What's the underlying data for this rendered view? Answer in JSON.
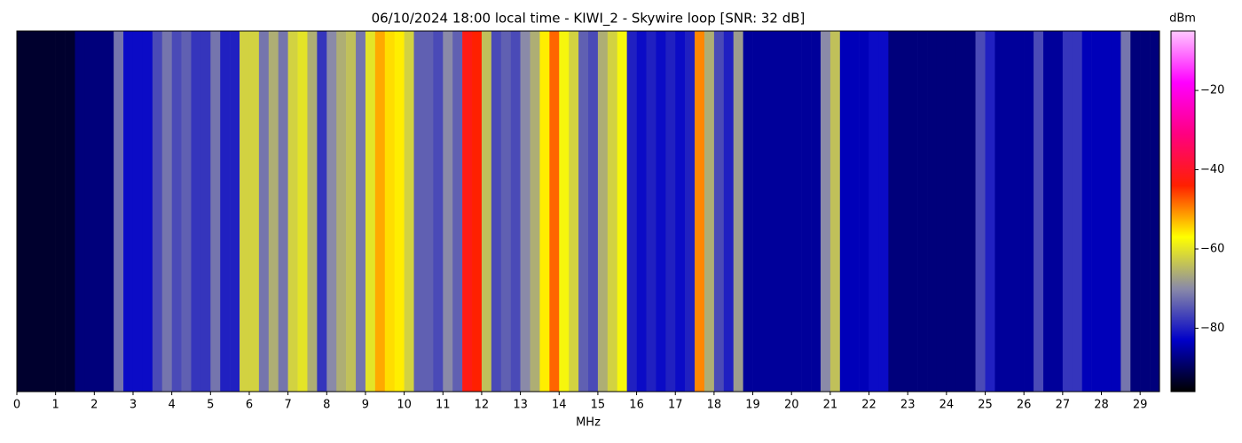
{
  "chart_data": {
    "type": "heatmap",
    "title": "06/10/2024 18:00 local time - KIWI_2 - Skywire loop [SNR: 32 dB]",
    "xlabel": "MHz",
    "colorbar_label": "dBm",
    "x": [
      0,
      0.25,
      0.5,
      0.75,
      1,
      1.25,
      1.5,
      1.75,
      2,
      2.25,
      2.5,
      2.75,
      3,
      3.25,
      3.5,
      3.75,
      4,
      4.25,
      4.5,
      4.75,
      5,
      5.25,
      5.5,
      5.75,
      6,
      6.25,
      6.5,
      6.75,
      7,
      7.25,
      7.5,
      7.75,
      8,
      8.25,
      8.5,
      8.75,
      9,
      9.25,
      9.5,
      9.75,
      10,
      10.25,
      10.5,
      10.75,
      11,
      11.25,
      11.5,
      11.75,
      12,
      12.25,
      12.5,
      12.75,
      13,
      13.25,
      13.5,
      13.75,
      14,
      14.25,
      14.5,
      14.75,
      15,
      15.25,
      15.5,
      15.75,
      16,
      16.25,
      16.5,
      16.75,
      17,
      17.25,
      17.5,
      17.75,
      18,
      18.25,
      18.5,
      18.75,
      19,
      19.25,
      19.5,
      19.75,
      20,
      20.25,
      20.5,
      20.75,
      21,
      21.25,
      21.5,
      21.75,
      22,
      22.25,
      22.5,
      22.75,
      23,
      23.25,
      23.5,
      23.75,
      24,
      24.25,
      24.5,
      24.75,
      25,
      25.25,
      25.5,
      25.75,
      26,
      26.25,
      26.5,
      26.75,
      27,
      27.25,
      27.5,
      27.75,
      28,
      28.25,
      28.5,
      28.75,
      29,
      29.25
    ],
    "values": [
      -93,
      -93,
      -93,
      -93,
      -93,
      -93,
      -88,
      -88,
      -88,
      -88,
      -72,
      -82,
      -82,
      -82,
      -76,
      -72,
      -76,
      -74,
      -78,
      -78,
      -72,
      -80,
      -80,
      -62,
      -62,
      -72,
      -66,
      -72,
      -62,
      -60,
      -66,
      -78,
      -70,
      -66,
      -64,
      -72,
      -60,
      -52,
      -55,
      -56,
      -62,
      -74,
      -74,
      -76,
      -70,
      -74,
      -42,
      -44,
      -64,
      -76,
      -74,
      -76,
      -70,
      -66,
      -56,
      -48,
      -58,
      -62,
      -74,
      -76,
      -66,
      -62,
      -58,
      -80,
      -82,
      -80,
      -82,
      -80,
      -82,
      -80,
      -50,
      -66,
      -76,
      -80,
      -68,
      -86,
      -86,
      -86,
      -86,
      -86,
      -86,
      -86,
      -86,
      -70,
      -64,
      -84,
      -84,
      -84,
      -82,
      -82,
      -88,
      -88,
      -88,
      -88,
      -88,
      -88,
      -88,
      -88,
      -88,
      -76,
      -80,
      -86,
      -86,
      -86,
      -86,
      -76,
      -86,
      -86,
      -78,
      -78,
      -84,
      -84,
      -84,
      -84,
      -72,
      -88,
      -88,
      -88
    ],
    "xlim": [
      0,
      29.5
    ],
    "xticks": [
      0,
      1,
      2,
      3,
      4,
      5,
      6,
      7,
      8,
      9,
      10,
      11,
      12,
      13,
      14,
      15,
      16,
      17,
      18,
      19,
      20,
      21,
      22,
      23,
      24,
      25,
      26,
      27,
      28,
      29
    ],
    "zlim": [
      -96,
      -5
    ],
    "zticks": [
      {
        "value": -20,
        "label": "−20"
      },
      {
        "value": -40,
        "label": "−40"
      },
      {
        "value": -60,
        "label": "−60"
      },
      {
        "value": -80,
        "label": "−80"
      }
    ],
    "colormap": [
      "#000000",
      "#0000c8",
      "#8a8aa8",
      "#ffff00",
      "#ff2000",
      "#ff0080",
      "#ff00ff",
      "#ffc8ff"
    ]
  }
}
